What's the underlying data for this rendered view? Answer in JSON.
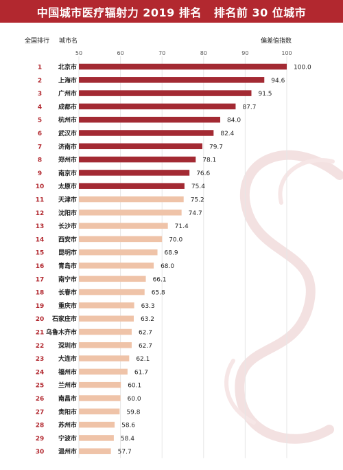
{
  "title": "中国城市医疗辐射力 2019 排名",
  "subtitle": "排名前 30 位城市",
  "headers": {
    "rank": "全国排行",
    "city": "城市名",
    "value": "偏差值指数"
  },
  "colors": {
    "banner": "#b2282f",
    "top": "#a32a33",
    "rest": "#efc3a8",
    "rank_text": "#b2282f",
    "grid": "#e6e6e6"
  },
  "chart_data": {
    "type": "bar",
    "orientation": "horizontal",
    "title": "中国城市医疗辐射力 2019 排名",
    "xlabel": "偏差值指数",
    "ylabel": "城市名",
    "xlim": [
      50,
      100
    ],
    "xticks": [
      "50",
      "60",
      "70",
      "80",
      "90",
      "100"
    ],
    "grid": true,
    "highlight_top": 10,
    "ranks": [
      "1",
      "2",
      "3",
      "4",
      "5",
      "6",
      "7",
      "8",
      "9",
      "10",
      "11",
      "12",
      "13",
      "14",
      "15",
      "16",
      "17",
      "18",
      "19",
      "20",
      "21",
      "22",
      "23",
      "24",
      "25",
      "26",
      "27",
      "28",
      "29",
      "30"
    ],
    "categories": [
      "北京市",
      "上海市",
      "广州市",
      "成都市",
      "杭州市",
      "武汉市",
      "济南市",
      "郑州市",
      "南京市",
      "太原市",
      "天津市",
      "沈阳市",
      "长沙市",
      "西安市",
      "昆明市",
      "青岛市",
      "南宁市",
      "长春市",
      "重庆市",
      "石家庄市",
      "乌鲁木齐市",
      "深圳市",
      "大连市",
      "福州市",
      "兰州市",
      "南昌市",
      "贵阳市",
      "苏州市",
      "宁波市",
      "温州市"
    ],
    "values": [
      100.0,
      94.6,
      91.5,
      87.7,
      84.0,
      82.4,
      79.7,
      78.1,
      76.6,
      75.4,
      75.2,
      74.7,
      71.4,
      70.0,
      68.9,
      68.0,
      66.1,
      65.8,
      63.3,
      63.2,
      62.7,
      62.7,
      62.1,
      61.7,
      60.1,
      60.0,
      59.8,
      58.6,
      58.4,
      57.7
    ],
    "labels": [
      "100.0",
      "94.6",
      "91.5",
      "87.7",
      "84.0",
      "82.4",
      "79.7",
      "78.1",
      "76.6",
      "75.4",
      "75.2",
      "74.7",
      "71.4",
      "70.0",
      "68.9",
      "68.0",
      "66.1",
      "65.8",
      "63.3",
      "63.2",
      "62.7",
      "62.7",
      "62.1",
      "61.7",
      "60.1",
      "60.0",
      "59.8",
      "58.6",
      "58.4",
      "57.7"
    ]
  }
}
